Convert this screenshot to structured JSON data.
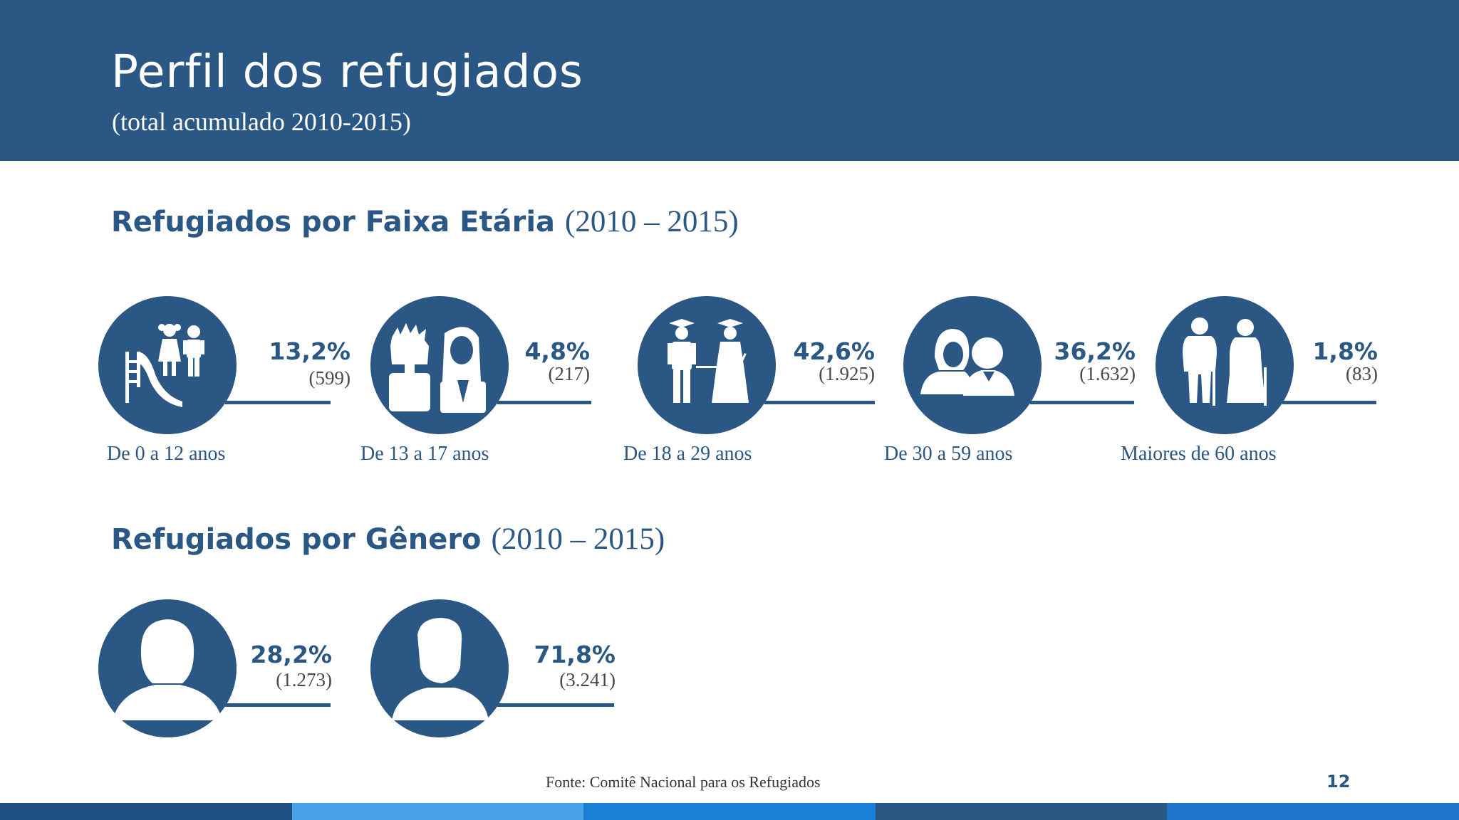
{
  "header": {
    "title": "Perfil dos refugiados",
    "subtitle": "(total acumulado 2010-2015)"
  },
  "age_section": {
    "title": "Refugiados por Faixa Etária",
    "period": "(2010 – 2015)",
    "groups": [
      {
        "label": "De 0 a 12 anos",
        "percent": "13,2%",
        "count": "(599)",
        "icon": "children-slide-icon"
      },
      {
        "label": "De 13 a 17 anos",
        "percent": "4,8%",
        "count": "(217)",
        "icon": "teenagers-icon"
      },
      {
        "label": "De 18 a 29 anos",
        "percent": "42,6%",
        "count": "(1.925)",
        "icon": "graduates-icon"
      },
      {
        "label": "De 30 a 59 anos",
        "percent": "36,2%",
        "count": "(1.632)",
        "icon": "adults-icon"
      },
      {
        "label": "Maiores de 60 anos",
        "percent": "1,8%",
        "count": "(83)",
        "icon": "elderly-couple-icon"
      }
    ]
  },
  "gender_section": {
    "title": "Refugiados por Gênero",
    "period": "(2010 – 2015)",
    "groups": [
      {
        "percent": "28,2%",
        "count": "(1.273)",
        "icon": "female-avatar-icon"
      },
      {
        "percent": "71,8%",
        "count": "(3.241)",
        "icon": "male-avatar-icon"
      }
    ]
  },
  "footer": {
    "source": "Fonte: Comitê Nacional para os Refugiados",
    "page_number": "12",
    "stripe_colors": [
      "#1f4e80",
      "#4aa3e8",
      "#1a7fd6",
      "#2b5784",
      "#1f75c9"
    ]
  },
  "colors": {
    "brand": "#2b5784"
  }
}
